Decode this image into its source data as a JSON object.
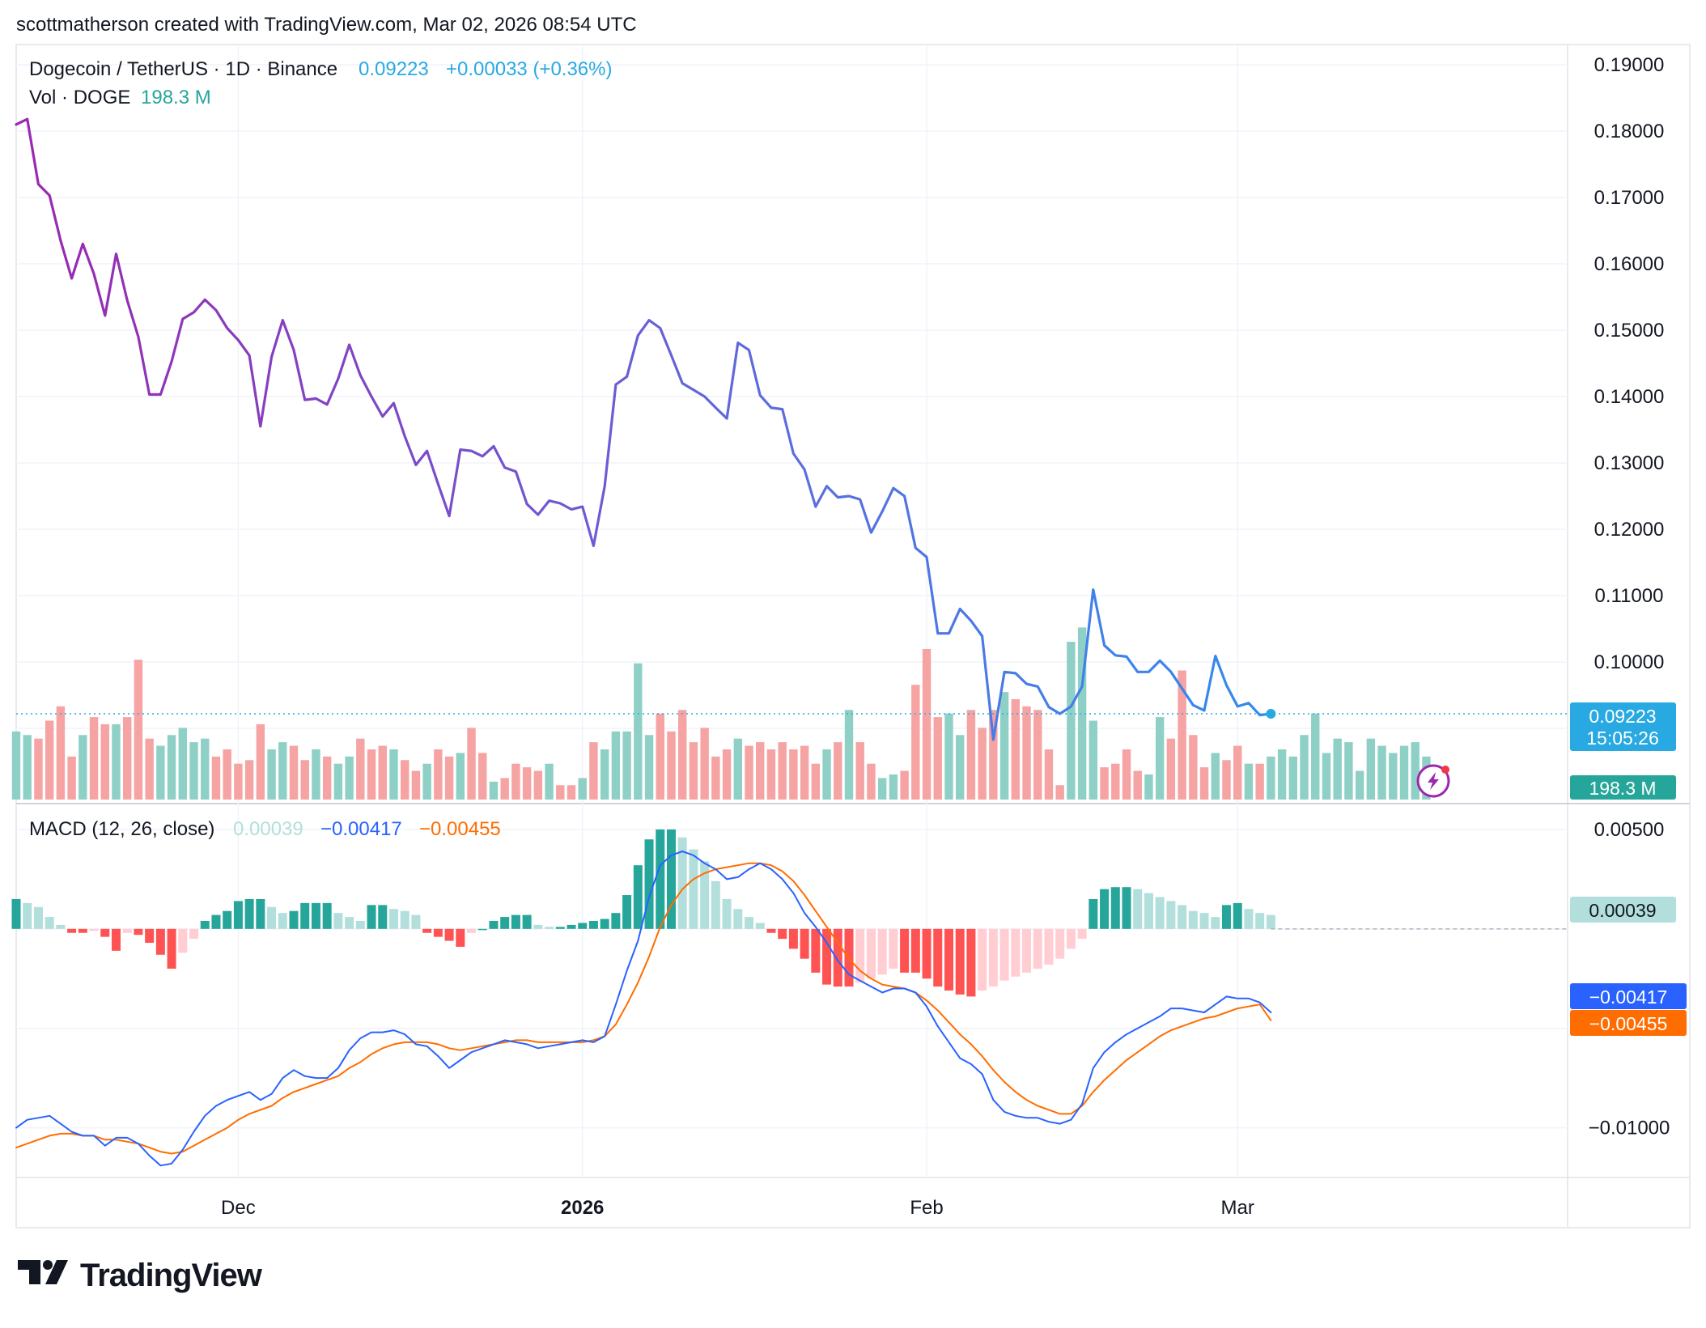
{
  "header": {
    "attribution": "scottmatherson created with TradingView.com, Mar 02, 2026 08:54 UTC"
  },
  "legend": {
    "symbol": "Dogecoin / TetherUS · 1D · Binance",
    "price": "0.09223",
    "change": "+0.00033 (+0.36%)",
    "vol_label": "Vol · DOGE",
    "vol_value": "198.3 M"
  },
  "macd_legend": {
    "label": "MACD (12, 26, close)",
    "hist": "0.00039",
    "macd": "−0.00417",
    "signal": "−0.00455"
  },
  "badges": {
    "price": "0.09223",
    "countdown": "15:05:26",
    "volume": "198.3 M",
    "hist": "0.00039",
    "macd": "−0.00417",
    "signal": "−0.00455"
  },
  "logo": {
    "text": "TradingView"
  },
  "colors": {
    "price_line_start": "#9c27b0",
    "price_line_mid": "#5b6ee0",
    "price_line_end": "#2196f3",
    "vol_up": "#8fd0c6",
    "vol_down": "#f5a3a3",
    "hist_up_strong": "#26a69a",
    "hist_up_weak": "#b2dfdb",
    "hist_down_strong": "#ff5252",
    "hist_down_weak": "#ffcdd2",
    "macd_line": "#2962ff",
    "signal_line": "#ff6d00",
    "price_badge": "#29a9e1",
    "volume_badge": "#26a69a"
  },
  "chart_data": [
    {
      "type": "line",
      "x_axis": {
        "ticks": [
          {
            "label": "Dec",
            "day": 20,
            "bold": false
          },
          {
            "label": "2026",
            "day": 51,
            "bold": true
          },
          {
            "label": "Feb",
            "day": 82,
            "bold": false
          },
          {
            "label": "Mar",
            "day": 110,
            "bold": false
          }
        ]
      },
      "ylim": [
        0.08,
        0.19
      ],
      "y_ticks": [
        "0.19000",
        "0.18000",
        "0.17000",
        "0.16000",
        "0.15000",
        "0.14000",
        "0.13000",
        "0.12000",
        "0.11000",
        "0.10000"
      ],
      "series": [
        {
          "values": [
            0.181,
            0.1818,
            0.172,
            0.1703,
            0.1635,
            0.1578,
            0.163,
            0.1585,
            0.1522,
            0.1615,
            0.1545,
            0.149,
            0.1403,
            0.1403,
            0.1453,
            0.1517,
            0.1527,
            0.1546,
            0.153,
            0.1503,
            0.1485,
            0.1462,
            0.1355,
            0.146,
            0.1515,
            0.147,
            0.1395,
            0.1397,
            0.1388,
            0.1427,
            0.1478,
            0.1432,
            0.14,
            0.137,
            0.139,
            0.134,
            0.1297,
            0.1318,
            0.1268,
            0.122,
            0.132,
            0.1318,
            0.131,
            0.1325,
            0.1293,
            0.1287,
            0.1238,
            0.1222,
            0.1243,
            0.1239,
            0.123,
            0.1234,
            0.1175,
            0.1265,
            0.1418,
            0.143,
            0.1492,
            0.1515,
            0.1503,
            0.1462,
            0.142,
            0.141,
            0.14,
            0.1383,
            0.1367,
            0.1481,
            0.147,
            0.1402,
            0.1383,
            0.1381,
            0.1314,
            0.129,
            0.1234,
            0.1265,
            0.1248,
            0.125,
            0.1245,
            0.1195,
            0.1227,
            0.1262,
            0.125,
            0.1172,
            0.1158,
            0.1043,
            0.1043,
            0.108,
            0.1062,
            0.1039,
            0.0883,
            0.0985,
            0.0983,
            0.0967,
            0.0963,
            0.0932,
            0.0922,
            0.0933,
            0.0963,
            0.1109,
            0.1025,
            0.101,
            0.1008,
            0.0985,
            0.0985,
            0.1002,
            0.0985,
            0.096,
            0.0935,
            0.0927,
            0.1009,
            0.0965,
            0.0933,
            0.0938,
            0.092,
            0.0922
          ]
        }
      ]
    },
    {
      "type": "bar",
      "name": "Vol · DOGE",
      "values": [
        95,
        90,
        85,
        110,
        130,
        60,
        90,
        115,
        105,
        105,
        115,
        195,
        85,
        75,
        90,
        100,
        80,
        85,
        60,
        70,
        50,
        55,
        105,
        70,
        80,
        75,
        55,
        70,
        60,
        50,
        60,
        85,
        70,
        75,
        70,
        55,
        40,
        50,
        70,
        60,
        65,
        100,
        65,
        25,
        30,
        50,
        45,
        40,
        50,
        20,
        20,
        30,
        80,
        70,
        95,
        95,
        190,
        90,
        120,
        95,
        125,
        80,
        100,
        60,
        70,
        85,
        75,
        80,
        70,
        80,
        70,
        75,
        50,
        70,
        80,
        125,
        80,
        50,
        30,
        35,
        40,
        160,
        210,
        115,
        120,
        90,
        125,
        100,
        125,
        150,
        140,
        130,
        125,
        70,
        20,
        220,
        240,
        110,
        45,
        50,
        70,
        40,
        35,
        115,
        85,
        180,
        90,
        45,
        65,
        55,
        75,
        50,
        50,
        60,
        70,
        60,
        90,
        120,
        65,
        85,
        80,
        40,
        85,
        75,
        65,
        75,
        80,
        60
      ]
    },
    {
      "type": "line",
      "name": "MACD (12, 26, close)",
      "ylim": [
        -0.0125,
        0.0063
      ],
      "y_ticks": [
        "0.00500",
        "−0.01000"
      ],
      "series": [
        {
          "values": [
            -0.01,
            -0.0096,
            -0.0095,
            -0.0094,
            -0.0098,
            -0.0102,
            -0.0104,
            -0.0104,
            -0.0109,
            -0.0105,
            -0.0105,
            -0.0108,
            -0.0114,
            -0.0119,
            -0.0118,
            -0.0111,
            -0.0102,
            -0.0094,
            -0.0089,
            -0.0086,
            -0.0084,
            -0.0082,
            -0.0086,
            -0.0083,
            -0.0075,
            -0.0071,
            -0.0074,
            -0.0075,
            -0.0075,
            -0.007,
            -0.0061,
            -0.0055,
            -0.0052,
            -0.0052,
            -0.0051,
            -0.0053,
            -0.0058,
            -0.0059,
            -0.0064,
            -0.007,
            -0.0066,
            -0.0062,
            -0.006,
            -0.0058,
            -0.0056,
            -0.0057,
            -0.0058,
            -0.006,
            -0.0059,
            -0.0058,
            -0.0057,
            -0.0056,
            -0.0057,
            -0.0054,
            -0.0038,
            -0.0021,
            -0.0006,
            0.0016,
            0.0032,
            0.0037,
            0.0039,
            0.0037,
            0.0033,
            0.003,
            0.0025,
            0.0026,
            0.003,
            0.0033,
            0.003,
            0.0025,
            0.0018,
            0.0008,
            0.0001,
            -0.0007,
            -0.0016,
            -0.0023,
            -0.0026,
            -0.0029,
            -0.0032,
            -0.003,
            -0.003,
            -0.0032,
            -0.0039,
            -0.0049,
            -0.0057,
            -0.0065,
            -0.0068,
            -0.0073,
            -0.0086,
            -0.0092,
            -0.0094,
            -0.0095,
            -0.0095,
            -0.0097,
            -0.0098,
            -0.0096,
            -0.0088,
            -0.007,
            -0.0062,
            -0.0057,
            -0.0053,
            -0.005,
            -0.0047,
            -0.0044,
            -0.004,
            -0.004,
            -0.0041,
            -0.0042,
            -0.0038,
            -0.0034,
            -0.0035,
            -0.0035,
            -0.0037,
            -0.0042
          ]
        },
        {
          "values": [
            -0.011,
            -0.0108,
            -0.0106,
            -0.0104,
            -0.0103,
            -0.0103,
            -0.0104,
            -0.0104,
            -0.0106,
            -0.0106,
            -0.0107,
            -0.0108,
            -0.011,
            -0.0112,
            -0.0113,
            -0.0112,
            -0.0109,
            -0.0106,
            -0.0103,
            -0.01,
            -0.0096,
            -0.0093,
            -0.0091,
            -0.0089,
            -0.0085,
            -0.0082,
            -0.008,
            -0.0078,
            -0.0076,
            -0.0074,
            -0.007,
            -0.0067,
            -0.0063,
            -0.006,
            -0.0058,
            -0.0057,
            -0.0057,
            -0.0057,
            -0.0058,
            -0.006,
            -0.0061,
            -0.006,
            -0.0059,
            -0.0058,
            -0.0057,
            -0.0056,
            -0.0056,
            -0.0057,
            -0.0057,
            -0.0057,
            -0.0057,
            -0.0057,
            -0.0056,
            -0.0054,
            -0.0048,
            -0.0038,
            -0.0027,
            -0.0014,
            0.0001,
            0.0012,
            0.002,
            0.0025,
            0.0028,
            0.003,
            0.0031,
            0.0032,
            0.0033,
            0.0033,
            0.0032,
            0.0029,
            0.0024,
            0.0017,
            0.0009,
            0.0001,
            -0.0007,
            -0.0015,
            -0.0021,
            -0.0025,
            -0.0028,
            -0.0029,
            -0.003,
            -0.0032,
            -0.0036,
            -0.0041,
            -0.0047,
            -0.0053,
            -0.0058,
            -0.0064,
            -0.0071,
            -0.0077,
            -0.0082,
            -0.0086,
            -0.0089,
            -0.0091,
            -0.0093,
            -0.0093,
            -0.0089,
            -0.0082,
            -0.0076,
            -0.0071,
            -0.0066,
            -0.0062,
            -0.0058,
            -0.0054,
            -0.0051,
            -0.0049,
            -0.0047,
            -0.0045,
            -0.0044,
            -0.0042,
            -0.004,
            -0.0039,
            -0.0038,
            -0.0046
          ]
        },
        {
          "values": [
            0.0015,
            0.0013,
            0.0011,
            0.0006,
            0.0002,
            -0.0002,
            -0.0002,
            -0.0001,
            -0.0004,
            -0.0011,
            -0.0002,
            -0.0003,
            -0.0007,
            -0.0013,
            -0.002,
            -0.0012,
            -0.0005,
            0.0004,
            0.0007,
            0.0009,
            0.0014,
            0.0015,
            0.0015,
            0.0011,
            0.0008,
            0.0009,
            0.0013,
            0.0013,
            0.0013,
            0.0008,
            0.0006,
            0.0004,
            0.0012,
            0.0012,
            0.001,
            0.0009,
            0.0007,
            -0.0002,
            -0.0004,
            -0.0006,
            -0.0009,
            -0.0002,
            0.0,
            0.0004,
            0.0006,
            0.0007,
            0.0007,
            0.0002,
            0.0001,
            0.0001,
            0.0002,
            0.0003,
            0.0004,
            0.0005,
            0.0008,
            0.0017,
            0.0032,
            0.0045,
            0.005,
            0.005,
            0.0046,
            0.004,
            0.0034,
            0.0024,
            0.0015,
            0.001,
            0.0006,
            0.0003,
            -0.0002,
            -0.0005,
            -0.001,
            -0.0015,
            -0.0022,
            -0.0028,
            -0.0029,
            -0.0029,
            -0.0027,
            -0.0025,
            -0.0023,
            -0.002,
            -0.0022,
            -0.0022,
            -0.0025,
            -0.0029,
            -0.0031,
            -0.0033,
            -0.0034,
            -0.0031,
            -0.0029,
            -0.0026,
            -0.0024,
            -0.0022,
            -0.002,
            -0.0018,
            -0.0015,
            -0.001,
            -0.0005,
            0.0015,
            0.002,
            0.0021,
            0.0021,
            0.002,
            0.0018,
            0.0016,
            0.0014,
            0.0012,
            0.0009,
            0.0008,
            0.0006,
            0.0012,
            0.0013,
            0.001,
            0.0008,
            0.0007
          ]
        }
      ]
    }
  ]
}
